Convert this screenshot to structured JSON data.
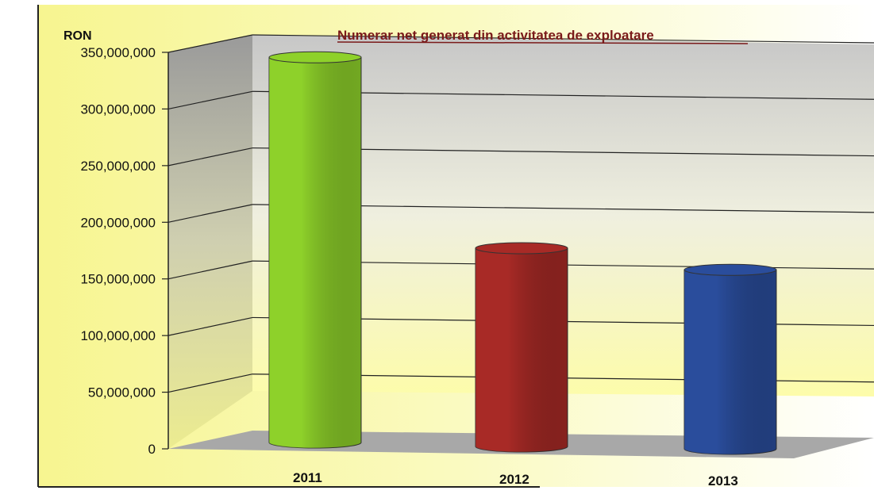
{
  "chart_data": {
    "type": "bar",
    "title": "Numerar net generat din activitatea de exploatare",
    "unit_label": "RON",
    "categories": [
      "2011",
      "2012",
      "2013"
    ],
    "values": [
      340000000,
      175000000,
      158000000
    ],
    "bar_colors": [
      "#8ed12a",
      "#a82a26",
      "#2a4d9c"
    ],
    "ylim": [
      0,
      350000000
    ],
    "yticks": [
      "0",
      "50,000,000",
      "100,000,000",
      "150,000,000",
      "200,000,000",
      "250,000,000",
      "300,000,000",
      "350,000,000"
    ],
    "grid": true,
    "legend": "none"
  }
}
